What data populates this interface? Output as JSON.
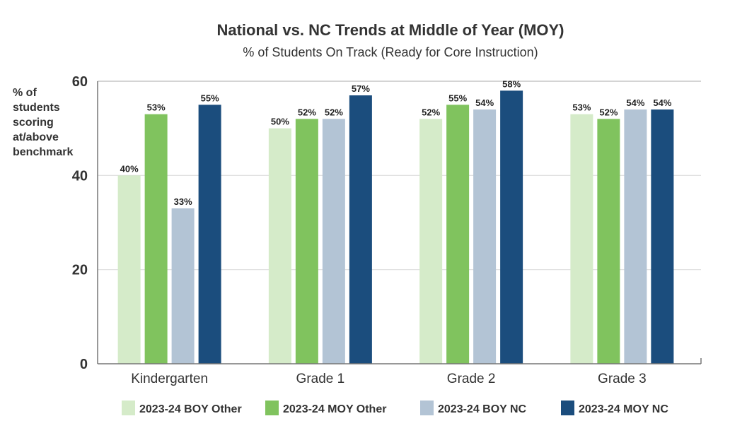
{
  "chart_data": {
    "type": "bar",
    "title": "National vs. NC Trends at Middle of Year (MOY)",
    "subtitle": "% of Students On Track (Ready for Core Instruction)",
    "ylabel": [
      "% of",
      "students",
      "scoring",
      "at/above",
      "benchmark"
    ],
    "xlabel": "",
    "ylim": [
      0,
      60
    ],
    "yticks": [
      "0",
      "20",
      "40",
      "60"
    ],
    "grid": true,
    "legend_position": "bottom",
    "categories": [
      "Kindergarten",
      "Grade 1",
      "Grade 2",
      "Grade 3"
    ],
    "series": [
      {
        "name": "2023-24 BOY Other",
        "color": "#d5ebc9",
        "values": [
          40,
          50,
          52,
          53
        ],
        "labels": [
          "40%",
          "50%",
          "52%",
          "53%"
        ]
      },
      {
        "name": "2023-24 MOY Other",
        "color": "#80c35e",
        "values": [
          53,
          52,
          55,
          52
        ],
        "labels": [
          "53%",
          "52%",
          "55%",
          "52%"
        ]
      },
      {
        "name": "2023-24 BOY NC",
        "color": "#b3c4d5",
        "values": [
          33,
          52,
          54,
          54
        ],
        "labels": [
          "33%",
          "52%",
          "54%",
          "54%"
        ]
      },
      {
        "name": "2023-24 MOY NC",
        "color": "#1b4d7d",
        "values": [
          55,
          57,
          58,
          54
        ],
        "labels": [
          "55%",
          "57%",
          "58%",
          "54%"
        ]
      }
    ]
  }
}
